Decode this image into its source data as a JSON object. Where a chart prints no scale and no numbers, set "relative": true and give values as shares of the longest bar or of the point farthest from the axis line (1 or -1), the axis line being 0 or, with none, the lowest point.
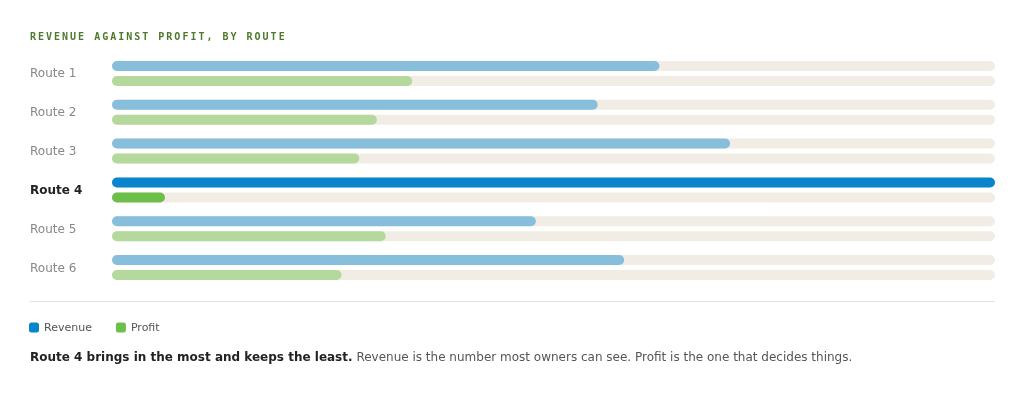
{
  "chart_data": {
    "type": "bar",
    "orientation": "horizontal",
    "relative": true,
    "title": "REVENUE AGAINST PROFIT, BY ROUTE",
    "categories": [
      "Route 1",
      "Route 2",
      "Route 3",
      "Route 4",
      "Route 5",
      "Route 6"
    ],
    "series": [
      {
        "name": "Revenue",
        "color": "#0a84cc",
        "colors": [
          "#86bedc",
          "#86bedc",
          "#86bedc",
          "#0a84cc",
          "#86bedc",
          "#86bedc"
        ],
        "values": [
          0.62,
          0.55,
          0.7,
          1,
          0.48,
          0.58
        ]
      },
      {
        "name": "Profit",
        "color": "#6cc04a",
        "colors": [
          "#b5d99c",
          "#b5d99c",
          "#b5d99c",
          "#6cc04a",
          "#b5d99c",
          "#b5d99c"
        ],
        "values": [
          0.34,
          0.3,
          0.28,
          0.06,
          0.31,
          0.26
        ]
      }
    ],
    "legend": "bottom left",
    "annotations": [
      "Route 4 brings in the most and keeps the least.",
      "Revenue is the number most owners can see. Profit is the one that decides things."
    ]
  }
}
